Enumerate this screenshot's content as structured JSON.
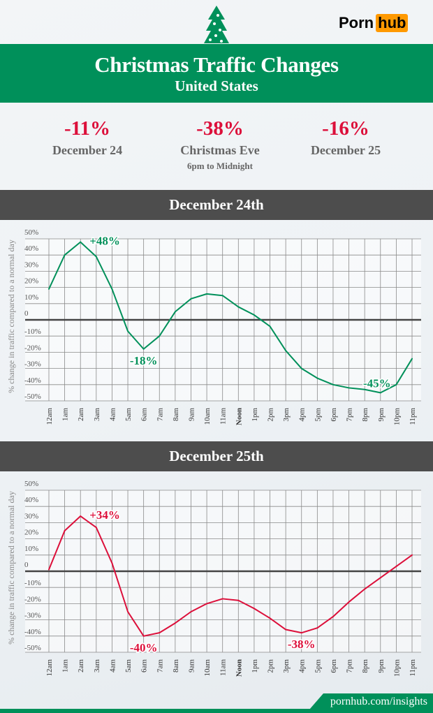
{
  "header": {
    "logo_text_left": "Porn",
    "logo_text_right": "hub",
    "title": "Christmas Traffic Changes",
    "subtitle": "United States"
  },
  "stats": [
    {
      "value": "-11%",
      "label": "December 24",
      "sub": ""
    },
    {
      "value": "-38%",
      "label": "Christmas Eve",
      "sub": "6pm to Midnight"
    },
    {
      "value": "-16%",
      "label": "December 25",
      "sub": ""
    }
  ],
  "colors": {
    "green": "#00905a",
    "red": "#dc0f3a",
    "bar": "#4d4d4d",
    "logo_orange": "#ff9900"
  },
  "footer": {
    "link": "pornhub.com/insights"
  },
  "chart_data": [
    {
      "type": "line",
      "title": "December 24th",
      "ylabel": "% change in traffic compared to a normal day",
      "ylim": [
        -50,
        50
      ],
      "grid": true,
      "yticks": [
        "50%",
        "40%",
        "30%",
        "20%",
        "10%",
        "0",
        "-10%",
        "-20%",
        "-30%",
        "-40%",
        "-50%"
      ],
      "categories": [
        "12am",
        "1am",
        "2am",
        "3am",
        "4am",
        "5am",
        "6am",
        "7am",
        "8am",
        "9am",
        "10am",
        "11am",
        "Noon",
        "1pm",
        "2pm",
        "3pm",
        "4pm",
        "5pm",
        "6pm",
        "7pm",
        "8pm",
        "9pm",
        "10pm",
        "11pm"
      ],
      "values": [
        19,
        40,
        48,
        39,
        19,
        -7,
        -18,
        -10,
        5,
        13,
        16,
        15,
        8,
        3,
        -4,
        -19,
        -30,
        -36,
        -40,
        -42,
        -43,
        -45,
        -40,
        -24
      ],
      "color": "#00905a",
      "annotations": [
        {
          "index": 2,
          "text": "+48%"
        },
        {
          "index": 6,
          "text": "-18%"
        },
        {
          "index": 21,
          "text": "-45%"
        }
      ]
    },
    {
      "type": "line",
      "title": "December 25th",
      "ylabel": "% change in traffic compared to a normal day",
      "ylim": [
        -50,
        50
      ],
      "grid": true,
      "yticks": [
        "50%",
        "40%",
        "30%",
        "20%",
        "10%",
        "0",
        "-10%",
        "-20%",
        "-30%",
        "-40%",
        "-50%"
      ],
      "categories": [
        "12am",
        "1am",
        "2am",
        "3am",
        "4am",
        "5am",
        "6am",
        "7am",
        "8am",
        "9am",
        "10am",
        "11am",
        "Noon",
        "1pm",
        "2pm",
        "3pm",
        "4pm",
        "5pm",
        "6pm",
        "7pm",
        "8pm",
        "9pm",
        "10pm",
        "11pm"
      ],
      "values": [
        1,
        25,
        34,
        27,
        5,
        -25,
        -40,
        -38,
        -32,
        -25,
        -20,
        -17,
        -18,
        -23,
        -29,
        -36,
        -38,
        -35,
        -28,
        -19,
        -11,
        -4,
        3,
        10
      ],
      "color": "#dc0f3a",
      "annotations": [
        {
          "index": 2,
          "text": "+34%"
        },
        {
          "index": 6,
          "text": "-40%"
        },
        {
          "index": 16,
          "text": "-38%"
        }
      ]
    }
  ]
}
